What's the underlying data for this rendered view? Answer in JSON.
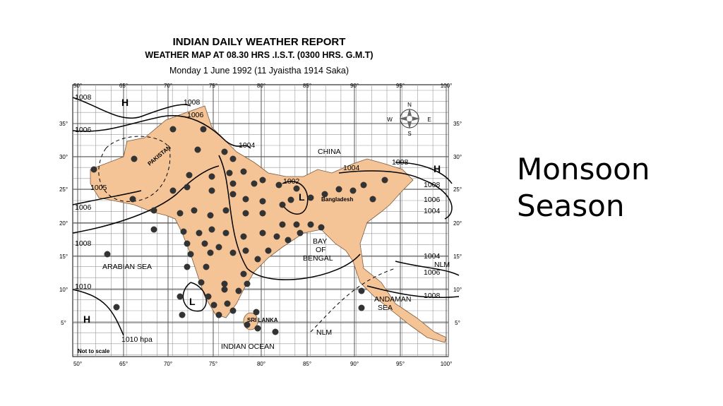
{
  "map": {
    "title": "INDIAN DAILY WEATHER REPORT",
    "subtitle": "WEATHER MAP AT 08.30 HRS .I.S.T. (0300 HRS. G.M.T)",
    "date": "Monday 1 June 1992 (11 Jyaistha 1914 Saka)",
    "longitude_labels": [
      "50°",
      "65°",
      "70°",
      "75°",
      "80°",
      "85°",
      "90°",
      "95°",
      "100°"
    ],
    "latitude_labels": [
      "35°",
      "30°",
      "25°",
      "20°",
      "15°",
      "10°",
      "5°"
    ],
    "compass": [
      "N",
      "E",
      "S",
      "W"
    ],
    "labels": [
      "1008",
      "H",
      "1008",
      "1006",
      "1006",
      "1004",
      "PAKISTAN",
      "CHINA",
      "1004",
      "1008",
      "H",
      "1005",
      "1002",
      "L",
      "Bangladesh",
      "1008",
      "1006",
      "1004",
      "1006",
      "1008",
      "BAY",
      "OF",
      "BENGAL",
      "1004",
      "NLM",
      "1006",
      "ARABIAN SEA",
      "1010",
      "ANDAMAN",
      "SEA",
      "1008",
      "L",
      "H",
      "SRI LANKA",
      "NLM",
      "1010 hpa",
      "INDIAN OCEAN",
      "Not to scale"
    ]
  },
  "slide": {
    "title": "Monsoon Season"
  }
}
